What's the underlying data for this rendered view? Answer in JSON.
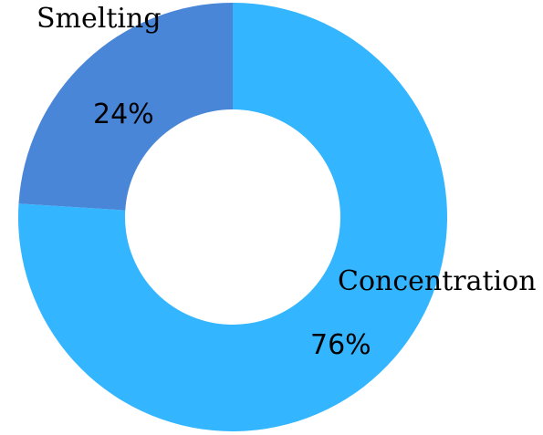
{
  "chart_data": {
    "type": "pie",
    "variant": "donut",
    "slices": [
      {
        "label": "Concentration",
        "value": 76,
        "value_label": "76%",
        "color": "#33b5ff"
      },
      {
        "label": "Smelting",
        "value": 24,
        "value_label": "24%",
        "color": "#4a86d8"
      }
    ],
    "legend": "none"
  }
}
